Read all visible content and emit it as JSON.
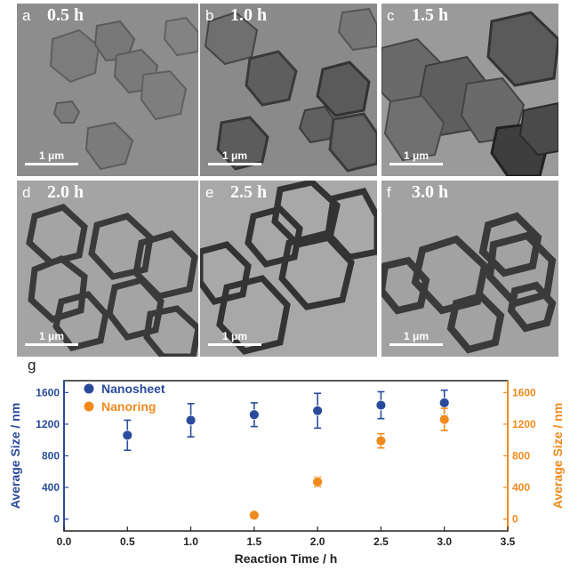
{
  "panels": [
    {
      "letter": "a",
      "time": "0.5 h",
      "scale": "1 μm"
    },
    {
      "letter": "b",
      "time": "1.0 h",
      "scale": "1 μm"
    },
    {
      "letter": "c",
      "time": "1.5 h",
      "scale": "1 μm"
    },
    {
      "letter": "d",
      "time": "2.0 h",
      "scale": "1 μm"
    },
    {
      "letter": "e",
      "time": "2.5 h",
      "scale": "1 μm"
    },
    {
      "letter": "f",
      "time": "3.0 h",
      "scale": "1 μm"
    }
  ],
  "colors": {
    "nanosheet": "#2a4a9c",
    "nanoring": "#f08a1c"
  },
  "chart_data": {
    "type": "scatter",
    "panel_letter": "g",
    "xlabel": "Reaction Time / h",
    "ylabel_left": "Average Size / nm",
    "ylabel_right": "Average Size / nm",
    "xlim": [
      0.0,
      3.5
    ],
    "ylim": [
      -150,
      1750
    ],
    "xticks": [
      "0.0",
      "0.5",
      "1.0",
      "1.5",
      "2.0",
      "2.5",
      "3.0",
      "3.5"
    ],
    "yticks": [
      "0",
      "400",
      "800",
      "1200",
      "1600"
    ],
    "legend_position": "top-left",
    "series": [
      {
        "name": "Nanosheet",
        "x": [
          0.5,
          1.0,
          1.5,
          2.0,
          2.5,
          3.0
        ],
        "y": [
          1060,
          1250,
          1320,
          1370,
          1440,
          1470
        ],
        "err": [
          190,
          210,
          150,
          220,
          170,
          160
        ]
      },
      {
        "name": "Nanoring",
        "x": [
          1.5,
          2.0,
          2.5,
          3.0
        ],
        "y": [
          50,
          470,
          990,
          1260
        ],
        "err": [
          20,
          60,
          90,
          140
        ]
      }
    ]
  }
}
